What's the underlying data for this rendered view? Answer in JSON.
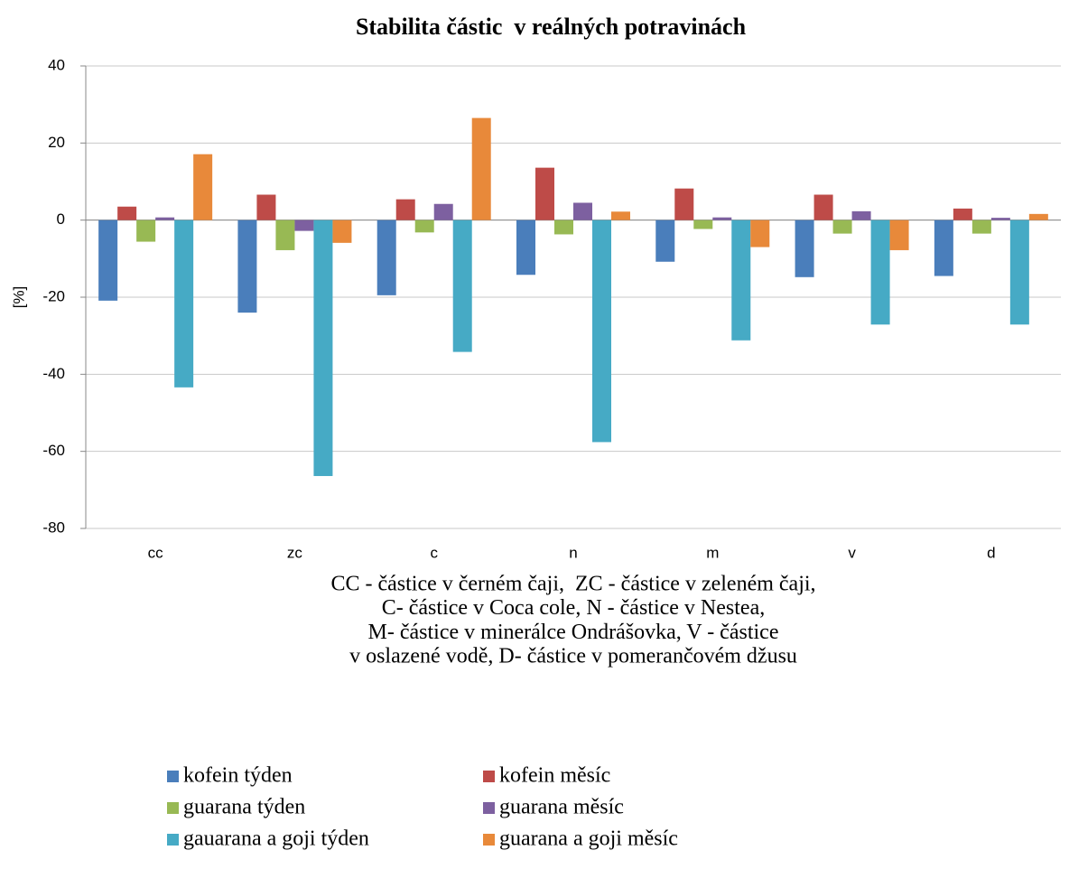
{
  "chart_data": {
    "type": "bar",
    "title": "Stabilita částic  v reálných potravinách",
    "y_label": "[%]",
    "caption": [
      "CC - částice v černém čaji,  ZC - částice v zeleném čaji,",
      "C- částice v Coca cole, N - částice v Nestea,",
      "M- částice v minerálce Ondrášovka, V - částice",
      "v oslazené vodě, D- částice v pomerančovém džusu"
    ],
    "categories": [
      "cc",
      "zc",
      "c",
      "n",
      "m",
      "v",
      "d"
    ],
    "series": [
      {
        "name": "kofein týden",
        "color": "#4a7ebb",
        "values": [
          -20.9,
          -24,
          -19.5,
          -14.2,
          -10.8,
          -14.8,
          -14.5
        ]
      },
      {
        "name": "kofein měsíc",
        "color": "#be4b48",
        "values": [
          3.5,
          6.6,
          5.4,
          13.6,
          8.2,
          6.6,
          3.0
        ]
      },
      {
        "name": "guarana týden",
        "color": "#98b954",
        "values": [
          -5.6,
          -7.8,
          -3.2,
          -3.7,
          -2.3,
          -3.5,
          -3.5
        ]
      },
      {
        "name": "guarana měsíc",
        "color": "#7d60a0",
        "values": [
          0.7,
          -2.8,
          4.2,
          4.5,
          0.7,
          2.3,
          0.6
        ]
      },
      {
        "name": "gauarana a goji týden",
        "color": "#46aac5",
        "values": [
          -43.4,
          -66.4,
          -34.2,
          -57.6,
          -31.2,
          -27.1,
          -27.1
        ]
      },
      {
        "name": "guarana a goji měsíc",
        "color": "#e8893a",
        "values": [
          17.1,
          -5.9,
          26.5,
          2.2,
          -7.0,
          -7.8,
          1.6
        ]
      }
    ],
    "ylim": [
      -80,
      40
    ],
    "yticks": [
      -80,
      -60,
      -40,
      -20,
      0,
      20,
      40
    ],
    "grid": true
  }
}
